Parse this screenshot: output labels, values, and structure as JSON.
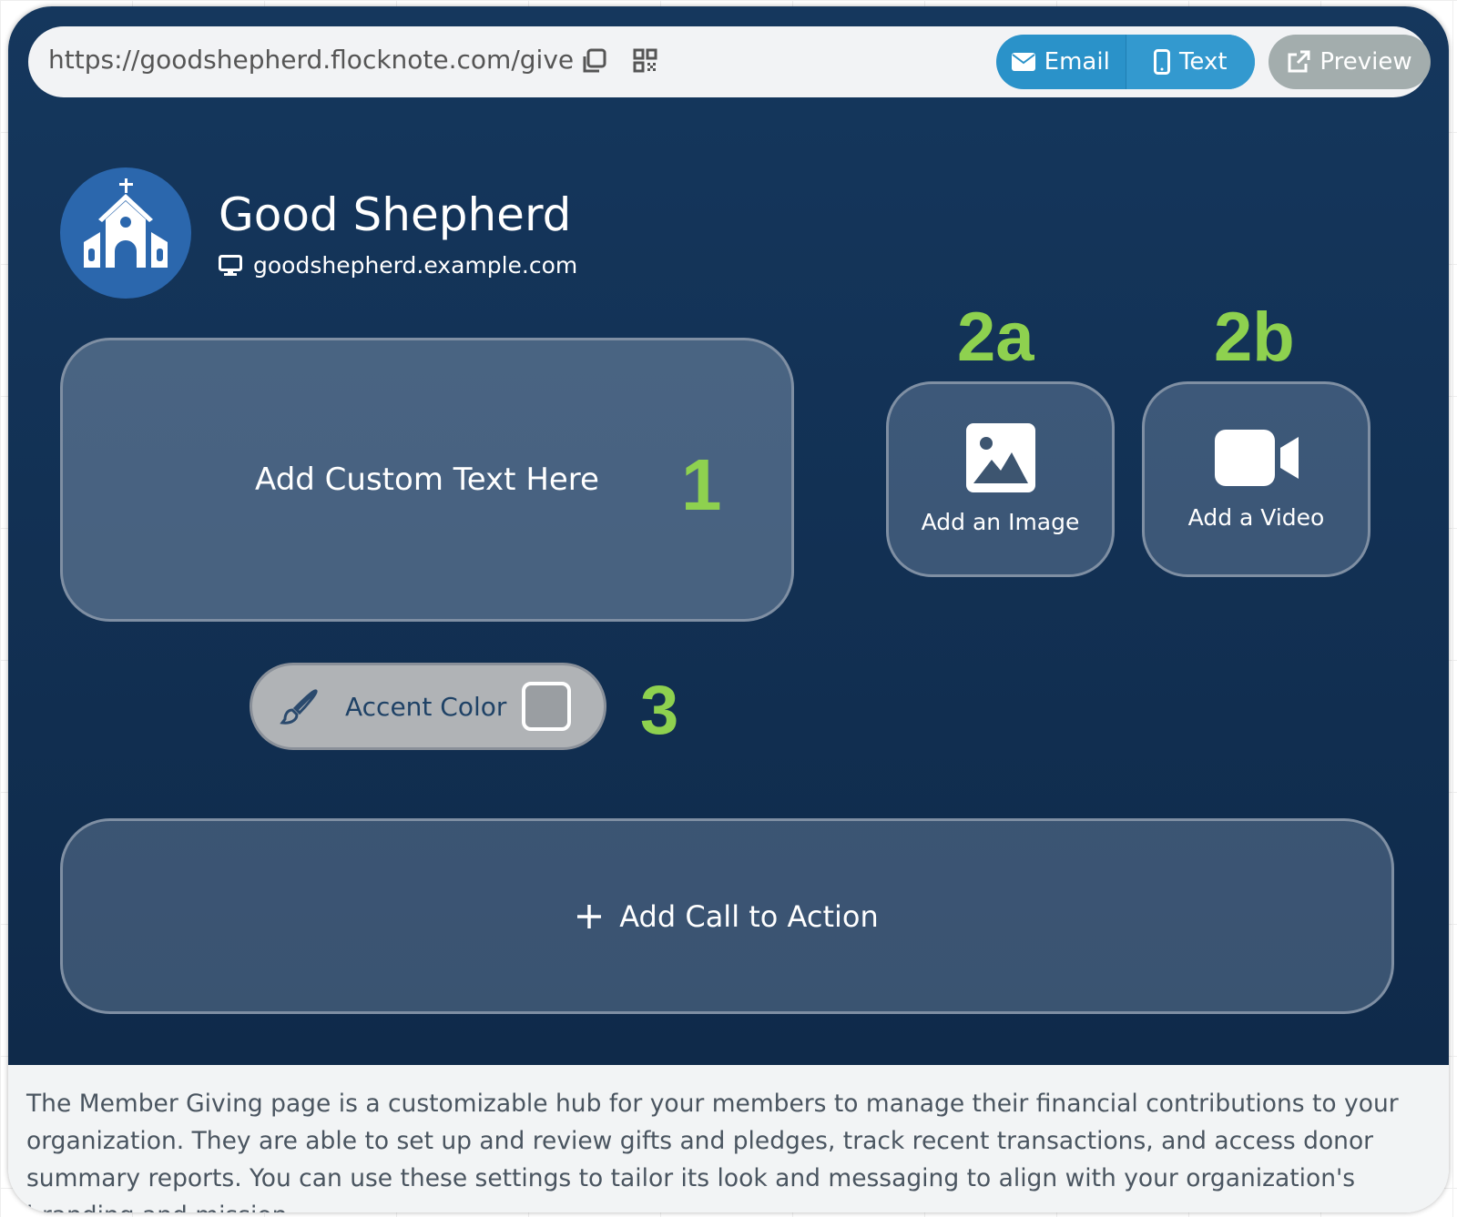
{
  "url_bar": {
    "url": "https://goodshepherd.flocknote.com/give",
    "email_label": "Email",
    "text_label": "Text",
    "preview_label": "Preview"
  },
  "header": {
    "title": "Good Shepherd",
    "website": "goodshepherd.example.com"
  },
  "blocks": {
    "custom_text": "Add Custom Text Here",
    "image": "Add an Image",
    "video": "Add a Video",
    "accent": "Accent Color",
    "cta": "Add Call to Action"
  },
  "annotations": {
    "n1": "1",
    "n2a": "2a",
    "n2b": "2b",
    "n3": "3"
  },
  "footer": {
    "description": "The Member Giving page is a customizable hub for your members to manage their financial contributions to your organization. They are able to set up and review gifts and pledges, track recent transactions, and access donor summary reports. You can use these settings to tailor its look and messaging to align with your organization's branding and mission."
  },
  "colors": {
    "background": "#15375d",
    "annotation": "#8ed14f",
    "button": "#2a92c9"
  }
}
